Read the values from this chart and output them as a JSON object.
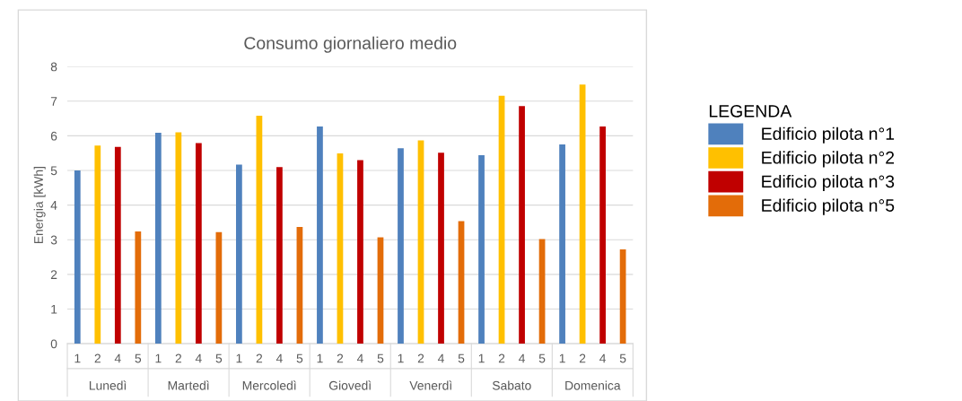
{
  "chart_data": {
    "type": "bar",
    "title": "Consumo giornaliero medio",
    "ylabel": "Energia [kWh]",
    "legend_title": "LEGENDA",
    "categories": [
      "1",
      "2",
      "4",
      "5",
      "1",
      "2",
      "4",
      "5",
      "1",
      "2",
      "4",
      "5",
      "1",
      "2",
      "4",
      "5",
      "1",
      "2",
      "4",
      "5",
      "1",
      "2",
      "4",
      "5",
      "1",
      "2",
      "4",
      "5"
    ],
    "annotations": [
      "Lunedì",
      "Martedì",
      "Mercoledì",
      "Giovedì",
      "Venerdì",
      "Sabato",
      "Domenica"
    ],
    "series": [
      {
        "name": "Edificio pilota n°1",
        "color": "#4f81bd",
        "values": [
          5.0,
          null,
          null,
          null,
          6.09,
          null,
          null,
          null,
          5.17,
          null,
          null,
          null,
          6.27,
          null,
          null,
          null,
          5.64,
          null,
          null,
          null,
          5.44,
          null,
          null,
          null,
          5.75,
          null,
          null,
          null
        ]
      },
      {
        "name": "Edificio pilota n°2",
        "color": "#ffc000",
        "values": [
          null,
          5.72,
          null,
          null,
          null,
          6.1,
          null,
          null,
          null,
          6.58,
          null,
          null,
          null,
          5.49,
          null,
          null,
          null,
          5.87,
          null,
          null,
          null,
          7.16,
          null,
          null,
          null,
          7.48,
          null,
          null
        ]
      },
      {
        "name": "Edificio pilota n°3",
        "color": "#c00000",
        "values": [
          null,
          null,
          5.68,
          null,
          null,
          null,
          5.79,
          null,
          null,
          null,
          5.1,
          null,
          null,
          null,
          5.3,
          null,
          null,
          null,
          5.51,
          null,
          null,
          null,
          6.86,
          null,
          null,
          null,
          6.27,
          null
        ]
      },
      {
        "name": "Edificio pilota n°5",
        "color": "#e36c09",
        "values": [
          null,
          null,
          null,
          3.24,
          null,
          null,
          null,
          3.22,
          null,
          null,
          null,
          3.37,
          null,
          null,
          null,
          3.07,
          null,
          null,
          null,
          3.54,
          null,
          null,
          null,
          3.02,
          null,
          null,
          null,
          2.72
        ]
      }
    ],
    "ylim": [
      0,
      8
    ],
    "yticks": [
      0,
      1,
      2,
      3,
      4,
      5,
      6,
      7,
      8
    ],
    "grid": "y",
    "legend": "right"
  }
}
